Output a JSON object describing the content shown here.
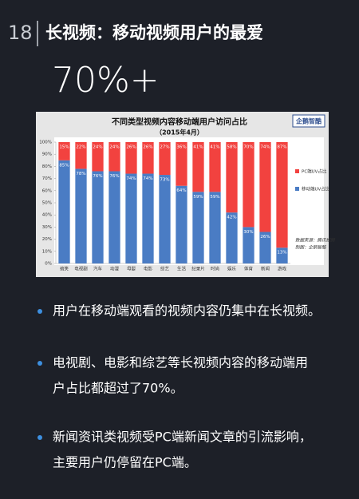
{
  "header": {
    "number": "18",
    "title": "长视频：移动视频用户的最爱"
  },
  "highlight": "70%+",
  "chart_data": {
    "type": "stacked-bar",
    "title": "不同类型视频内容移动端用户访问占比",
    "subtitle": "（2015年4月）",
    "logo": "企鹅智酷",
    "source": [
      "数据来源：腾讯视频",
      "制图：企鹅智酷"
    ],
    "categories": [
      "搞笑",
      "电视剧",
      "汽车",
      "动漫",
      "母婴",
      "电影",
      "综艺",
      "生活",
      "纪录片",
      "时尚",
      "娱乐",
      "体育",
      "新闻",
      "游戏"
    ],
    "series": [
      {
        "name": "移动端UV占比",
        "color": "#4a7cc4",
        "values": [
          85,
          78,
          76,
          76,
          74,
          74,
          73,
          64,
          59,
          59,
          42,
          30,
          26,
          13
        ],
        "value_labels": [
          "85%",
          "78%",
          "76%",
          "76%",
          "74%",
          "74%",
          "73%",
          "64%",
          "59%",
          "59%",
          "42%",
          "30%",
          "26%",
          "13%"
        ]
      },
      {
        "name": "PC端UV占比",
        "color": "#f2423f",
        "values": [
          15,
          22,
          24,
          24,
          26,
          26,
          27,
          36,
          41,
          41,
          58,
          70,
          74,
          87
        ],
        "value_labels": [
          "15%",
          "22%",
          "24%",
          "24%",
          "26%",
          "26%",
          "27%",
          "36%",
          "41%",
          "41%",
          "58%",
          "70%",
          "74%",
          "87%"
        ]
      }
    ],
    "ylim": [
      0,
      100
    ],
    "yticks": [
      {
        "value": 0,
        "label": "0%"
      },
      {
        "value": 10,
        "label": "10%"
      },
      {
        "value": 20,
        "label": "20%"
      },
      {
        "value": 30,
        "label": "30%"
      },
      {
        "value": 40,
        "label": "40%"
      },
      {
        "value": 50,
        "label": "50%"
      },
      {
        "value": 60,
        "label": "60%"
      },
      {
        "value": 70,
        "label": "70%"
      },
      {
        "value": 80,
        "label": "80%"
      },
      {
        "value": 90,
        "label": "90%"
      },
      {
        "value": 100,
        "label": "100%"
      }
    ],
    "legend": "right"
  },
  "bullets": [
    [
      "用户在移动端观看的视频内容仍集中在长视频。"
    ],
    [
      "电视剧、电影和综艺等长视频内容的移动端用",
      "户占比都超过了70%。"
    ],
    [
      "新闻资讯类视频受PC端新闻文章的引流影响，",
      "主要用户仍停留在PC端。"
    ]
  ]
}
